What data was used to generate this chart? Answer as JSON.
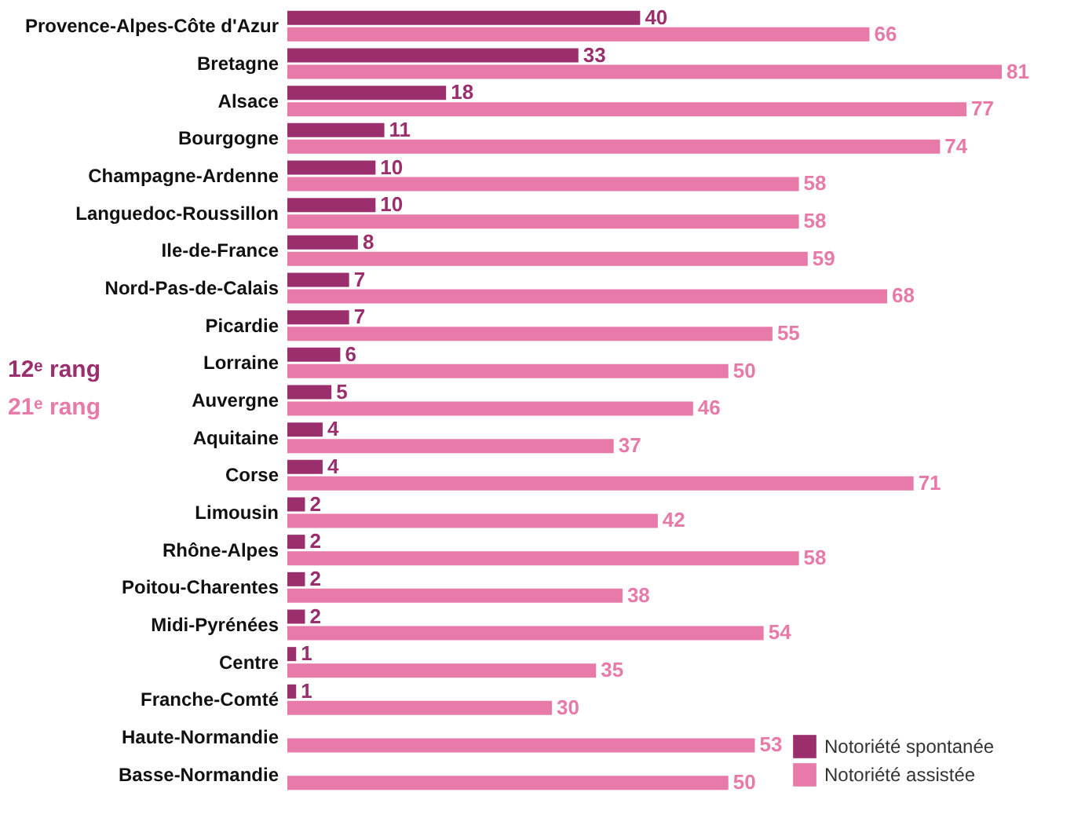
{
  "chart_data": {
    "type": "bar",
    "orientation": "horizontal",
    "data_labels": true,
    "legend": "bottom right",
    "categories": [
      "Provence-Alpes-Côte d'Azur",
      "Bretagne",
      "Alsace",
      "Bourgogne",
      "Champagne-Ardenne",
      "Languedoc-Roussillon",
      "Ile-de-France",
      "Nord-Pas-de-Calais",
      "Picardie",
      "Lorraine",
      "Auvergne",
      "Aquitaine",
      "Corse",
      "Limousin",
      "Rhône-Alpes",
      "Poitou-Charentes",
      "Midi-Pyrénées",
      "Centre",
      "Franche-Comté",
      "Haute-Normandie",
      "Basse-Normandie"
    ],
    "series": [
      {
        "name": "Notoriété spontanée",
        "color": "#9b2f6e",
        "values": [
          40,
          33,
          18,
          11,
          10,
          10,
          8,
          7,
          7,
          6,
          5,
          4,
          4,
          2,
          2,
          2,
          2,
          1,
          1,
          null,
          null
        ]
      },
      {
        "name": "Notoriété assistée",
        "color": "#e77aa9",
        "values": [
          66,
          81,
          77,
          74,
          58,
          58,
          59,
          68,
          55,
          50,
          46,
          37,
          71,
          42,
          58,
          38,
          54,
          35,
          30,
          53,
          50
        ]
      }
    ],
    "annotations": [
      "12ᵉ rang",
      "21ᵉ rang"
    ]
  }
}
